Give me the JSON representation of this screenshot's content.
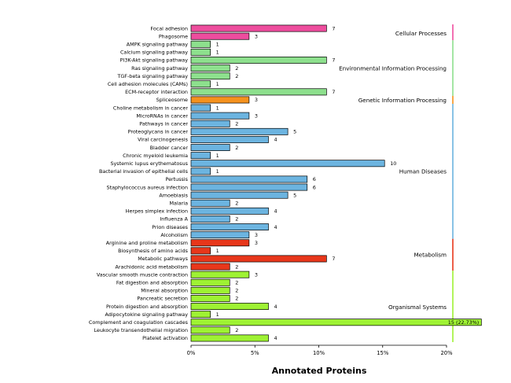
{
  "chart_data": {
    "type": "bar",
    "orientation": "horizontal",
    "title": "",
    "xlabel": "Annotated Proteins",
    "ylabel": "",
    "x_unit": "percent",
    "xlim": [
      0,
      20
    ],
    "x_ticks": [
      "0%",
      "5%",
      "10%",
      "15%",
      "20%"
    ],
    "total": 66,
    "grid": false,
    "legend": "none",
    "groups": [
      {
        "name": "Cellular Processes",
        "color": "#ee4d9e"
      },
      {
        "name": "Environmental Information Processing",
        "color": "#8de08d"
      },
      {
        "name": "Genetic Information Processing",
        "color": "#f5921e"
      },
      {
        "name": "Human Diseases",
        "color": "#6cb4e0"
      },
      {
        "name": "Metabolism",
        "color": "#e8371b"
      },
      {
        "name": "Organismal Systems",
        "color": "#9ef233"
      }
    ],
    "bars": [
      {
        "label": "Focal adhesion",
        "count": 7,
        "value_label": "7",
        "group": 0
      },
      {
        "label": "Phagosome",
        "count": 3,
        "value_label": "3",
        "group": 0
      },
      {
        "label": "AMPK signaling pathway",
        "count": 1,
        "value_label": "1",
        "group": 1
      },
      {
        "label": "Calcium signaling pathway",
        "count": 1,
        "value_label": "1",
        "group": 1
      },
      {
        "label": "PI3K-Akt signaling pathway",
        "count": 7,
        "value_label": "7",
        "group": 1
      },
      {
        "label": "Ras signaling pathway",
        "count": 2,
        "value_label": "2",
        "group": 1
      },
      {
        "label": "TGF-beta signaling pathway",
        "count": 2,
        "value_label": "2",
        "group": 1
      },
      {
        "label": "Cell adhesion molecules (CAMs)",
        "count": 1,
        "value_label": "1",
        "group": 1
      },
      {
        "label": "ECM-receptor interaction",
        "count": 7,
        "value_label": "7",
        "group": 1
      },
      {
        "label": "Spliceosome",
        "count": 3,
        "value_label": "3",
        "group": 2
      },
      {
        "label": "Choline metabolism in cancer",
        "count": 1,
        "value_label": "1",
        "group": 3
      },
      {
        "label": "MicroRNAs in cancer",
        "count": 3,
        "value_label": "3",
        "group": 3
      },
      {
        "label": "Pathways in cancer",
        "count": 2,
        "value_label": "2",
        "group": 3
      },
      {
        "label": "Proteoglycans in cancer",
        "count": 5,
        "value_label": "5",
        "group": 3
      },
      {
        "label": "Viral carcinogenesis",
        "count": 4,
        "value_label": "4",
        "group": 3
      },
      {
        "label": "Bladder cancer",
        "count": 2,
        "value_label": "2",
        "group": 3
      },
      {
        "label": "Chronic myeloid leukemia",
        "count": 1,
        "value_label": "1",
        "group": 3
      },
      {
        "label": "Systemic lupus erythematosus",
        "count": 10,
        "value_label": "10",
        "group": 3
      },
      {
        "label": "Bacterial invasion of epithelial cells",
        "count": 1,
        "value_label": "1",
        "group": 3
      },
      {
        "label": "Pertussis",
        "count": 6,
        "value_label": "6",
        "group": 3
      },
      {
        "label": "Staphylococcus aureus infection",
        "count": 6,
        "value_label": "6",
        "group": 3
      },
      {
        "label": "Amoebiasis",
        "count": 5,
        "value_label": "5",
        "group": 3
      },
      {
        "label": "Malaria",
        "count": 2,
        "value_label": "2",
        "group": 3
      },
      {
        "label": "Herpes simplex infection",
        "count": 4,
        "value_label": "4",
        "group": 3
      },
      {
        "label": "Influenza A",
        "count": 2,
        "value_label": "2",
        "group": 3
      },
      {
        "label": "Prion diseases",
        "count": 4,
        "value_label": "4",
        "group": 3
      },
      {
        "label": "Alcoholism",
        "count": 3,
        "value_label": "3",
        "group": 3
      },
      {
        "label": "Arginine and proline metabolism",
        "count": 3,
        "value_label": "3",
        "group": 4
      },
      {
        "label": "Biosynthesis of amino acids",
        "count": 1,
        "value_label": "1",
        "group": 4
      },
      {
        "label": "Metabolic pathways",
        "count": 7,
        "value_label": "7",
        "group": 4
      },
      {
        "label": "Arachidonic acid metabolism",
        "count": 2,
        "value_label": "2",
        "group": 4
      },
      {
        "label": "Vascular smooth muscle contraction",
        "count": 3,
        "value_label": "3",
        "group": 5
      },
      {
        "label": "Fat digestion and absorption",
        "count": 2,
        "value_label": "2",
        "group": 5
      },
      {
        "label": "Mineral absorption",
        "count": 2,
        "value_label": "2",
        "group": 5
      },
      {
        "label": "Pancreatic secretion",
        "count": 2,
        "value_label": "2",
        "group": 5
      },
      {
        "label": "Protein digestion and absorption",
        "count": 4,
        "value_label": "4",
        "group": 5
      },
      {
        "label": "Adipocytokine signaling pathway",
        "count": 1,
        "value_label": "1",
        "group": 5
      },
      {
        "label": "Complement and coagulation cascades",
        "count": 15,
        "value_label": "15 (22.73%)",
        "group": 5
      },
      {
        "label": "Leukocyte transendothelial migration",
        "count": 2,
        "value_label": "2",
        "group": 5
      },
      {
        "label": "Platelet activation",
        "count": 4,
        "value_label": "4",
        "group": 5
      }
    ]
  }
}
